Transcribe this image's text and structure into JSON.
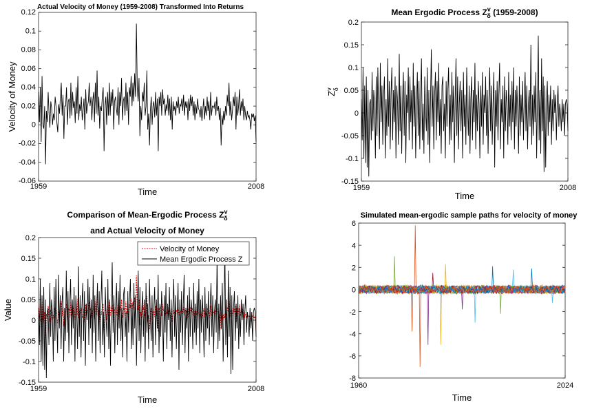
{
  "chart_data": [
    {
      "type": "line",
      "title": "Actual Velocity of Money (1959-2008) Transformed Into Returns",
      "xlabel": "Time",
      "ylabel": "Velocity of Money",
      "ylim": [
        -0.06,
        0.12
      ],
      "yticks": [
        "-0.06",
        "-0.04",
        "-0.02",
        "0",
        "0.02",
        "0.04",
        "0.06",
        "0.08",
        "0.1",
        "0.12"
      ],
      "xticks": [
        "1959",
        "2008"
      ],
      "x_start": 1959,
      "x_end": 2008,
      "grid": false,
      "legend": "none",
      "series": [
        {
          "color": "#000000",
          "values": [
            0.035,
            0.003,
            0.04,
            -0.018,
            0.052,
            0.0,
            -0.004,
            0.02,
            -0.042,
            0.015,
            0.003,
            0.035,
            0.012,
            -0.003,
            0.025,
            0.018,
            0.0,
            0.012,
            0.005,
            0.03,
            0.02,
            0.002,
            -0.008,
            0.022,
            0.012,
            0.03,
            0.045,
            0.01,
            0.032,
            -0.015,
            0.02,
            0.02,
            0.04,
            0.0,
            0.025,
            0.028,
            0.007,
            0.045,
            0.01,
            0.035,
            0.018,
            0.025,
            0.002,
            0.04,
            0.012,
            0.052,
            0.005,
            0.022,
            0.015,
            0.03,
            0.005,
            0.015,
            0.028,
            -0.005,
            0.038,
            0.012,
            0.02,
            0.025,
            0.045,
            0.02,
            0.03,
            0.005,
            0.025,
            0.035,
            0.003,
            0.045,
            0.012,
            0.058,
            0.01,
            0.03,
            -0.004,
            0.02,
            0.015,
            0.03,
            0.04,
            -0.028,
            0.02,
            0.03,
            0.0,
            0.035,
            0.01,
            0.045,
            0.01,
            0.035,
            0.02,
            0.038,
            -0.005,
            0.025,
            0.03,
            0.018,
            0.01,
            0.04,
            0.0,
            0.035,
            0.02,
            0.05,
            0.005,
            0.025,
            0.03,
            0.01,
            0.045,
            0.015,
            0.035,
            0.0,
            0.04,
            0.03,
            0.052,
            0.02,
            0.045,
            0.025,
            0.055,
            0.03,
            0.108,
            0.04,
            0.025,
            0.05,
            -0.012,
            0.02,
            0.005,
            0.035,
            0.025,
            0.045,
            0.01,
            0.02,
            0.058,
            -0.005,
            0.012,
            -0.022,
            0.015,
            0.03,
            0.0,
            0.02,
            0.025,
            0.008,
            0.035,
            0.01,
            0.028,
            -0.028,
            0.03,
            0.02,
            0.035,
            0.01,
            0.038,
            0.022,
            0.028,
            0.01,
            0.022,
            0.015,
            0.032,
            0.01,
            0.028,
            0.005,
            0.03,
            -0.005,
            0.025,
            0.015,
            0.02,
            0.01,
            0.025,
            0.018,
            0.03,
            0.012,
            0.022,
            0.02,
            0.028,
            0.015,
            0.032,
            0.01,
            0.025,
            0.018,
            0.025,
            0.005,
            0.028,
            0.015,
            0.032,
            0.02,
            0.03,
            0.01,
            0.025,
            0.005,
            0.022,
            0.012,
            0.028,
            0.018,
            0.015,
            0.008,
            0.02,
            0.004,
            0.015,
            0.028,
            0.006,
            0.02,
            0.01,
            0.03,
            0.015,
            0.025,
            0.005,
            0.035,
            0.01,
            0.02,
            0.02,
            0.018,
            0.025,
            0.01,
            0.03,
            0.015,
            0.02,
            0.005,
            0.018,
            -0.022,
            0.01,
            0.0,
            0.015,
            0.005,
            0.02,
            0.01,
            0.032,
            0.02,
            0.045,
            0.01,
            0.025,
            0.005,
            0.015,
            0.03,
            0.02,
            0.035,
            -0.005,
            0.03,
            0.01,
            0.02,
            0.038,
            0.01,
            0.025,
            0.015,
            0.028,
            0.005,
            0.02,
            0.01,
            0.005,
            0.015,
            0.008,
            0.01,
            0.005,
            -0.005,
            0.012,
            0.008,
            0.012,
            0.004,
            0.01,
            -0.018
          ]
        }
      ]
    },
    {
      "type": "line",
      "title": "Mean Ergodic Process Z",
      "title_sup": "v",
      "title_sub": "δ",
      "title_after": " (1959-2008)",
      "xlabel": "Time",
      "ylabel": "Z",
      "ylabel_sup": "v",
      "ylabel_sub": "δ",
      "ylim": [
        -0.15,
        0.2
      ],
      "yticks": [
        "-0.15",
        "-0.1",
        "-0.05",
        "0",
        "0.05",
        "0.1",
        "0.15",
        "0.2"
      ],
      "xticks": [
        "1959",
        "2008"
      ],
      "x_start": 1959,
      "x_end": 2008,
      "grid": false,
      "legend": "none",
      "series": [
        {
          "color": "#000000",
          "values": [
            0.03,
            -0.06,
            0.1,
            -0.1,
            0.06,
            -0.11,
            0.08,
            -0.12,
            0.05,
            -0.14,
            0.02,
            0.03,
            -0.06,
            0.09,
            -0.04,
            0.05,
            0.02,
            -0.1,
            0.08,
            -0.05,
            0.1,
            0.0,
            -0.08,
            0.11,
            -0.02,
            0.06,
            -0.07,
            0.04,
            0.08,
            -0.1,
            0.03,
            -0.05,
            0.12,
            -0.03,
            0.07,
            -0.08,
            0.04,
            0.1,
            -0.06,
            0.05,
            -0.02,
            0.08,
            -0.1,
            0.06,
            0.02,
            -0.07,
            0.13,
            -0.04,
            0.06,
            -0.09,
            0.03,
            0.09,
            -0.05,
            0.07,
            -0.11,
            0.04,
            0.0,
            0.1,
            -0.06,
            0.08,
            -0.02,
            0.05,
            -0.08,
            0.11,
            -0.03,
            0.06,
            -0.1,
            0.02,
            0.09,
            -0.05,
            0.07,
            -0.08,
            0.04,
            0.12,
            -0.06,
            0.02,
            -0.09,
            0.08,
            0.0,
            -0.04,
            0.1,
            -0.07,
            0.05,
            -0.11,
            0.03,
            0.14,
            -0.03,
            0.06,
            -0.08,
            0.04,
            0.09,
            -0.06,
            0.07,
            -0.02,
            0.11,
            -0.05,
            0.03,
            -0.09,
            0.06,
            0.08,
            -0.04,
            0.02,
            -0.1,
            0.07,
            -0.03,
            0.05,
            0.1,
            -0.07,
            0.04,
            -0.06,
            0.09,
            -0.02,
            0.06,
            -0.11,
            0.03,
            0.12,
            -0.05,
            0.08,
            -0.08,
            0.02,
            0.07,
            -0.04,
            0.05,
            -0.1,
            0.09,
            -0.03,
            0.04,
            -0.07,
            0.1,
            0.01,
            -0.05,
            0.06,
            -0.09,
            0.03,
            0.08,
            -0.06,
            0.05,
            -0.02,
            0.11,
            -0.08,
            0.04,
            -0.04,
            0.07,
            0.02,
            -0.1,
            0.06,
            -0.03,
            0.09,
            -0.07,
            0.04,
            0.0,
            0.08,
            -0.05,
            0.05,
            -0.09,
            0.03,
            0.1,
            -0.04,
            0.06,
            -0.07,
            0.02,
            0.09,
            -0.12,
            0.05,
            -0.03,
            0.07,
            -0.06,
            0.04,
            0.11,
            -0.08,
            0.03,
            -0.02,
            0.06,
            -0.1,
            0.08,
            -0.04,
            0.05,
            0.02,
            -0.07,
            0.09,
            -0.03,
            0.04,
            -0.06,
            0.07,
            -0.02,
            0.1,
            -0.08,
            0.05,
            -0.03,
            0.06,
            0.0,
            -0.09,
            0.08,
            -0.05,
            0.04,
            -0.02,
            0.07,
            -0.06,
            0.03,
            0.09,
            -0.04,
            0.06,
            -0.08,
            0.02,
            0.05,
            -0.03,
            0.15,
            -0.07,
            0.04,
            -0.05,
            0.06,
            -0.02,
            0.09,
            -0.1,
            0.03,
            0.17,
            -0.06,
            0.05,
            -0.09,
            0.12,
            -0.04,
            0.08,
            -0.13,
            0.06,
            -0.12,
            0.03,
            0.07,
            -0.05,
            0.04,
            -0.02,
            0.06,
            -0.07,
            0.03,
            -0.04,
            0.05,
            0.0,
            0.04,
            -0.06,
            0.02,
            0.06,
            -0.03,
            0.02,
            0.0,
            -0.04,
            0.03,
            -0.02,
            0.02,
            -0.05,
            0.02,
            0.03,
            0.02,
            -0.04
          ]
        }
      ]
    },
    {
      "type": "line",
      "title_line1": "Comparison of Mean-Ergodic Process Z",
      "title_sup": "v",
      "title_sub": "δ",
      "title_line2": "and Actual Velocity of Money",
      "xlabel": "Time",
      "ylabel": "Value",
      "ylim": [
        -0.15,
        0.2
      ],
      "yticks": [
        "-0.15",
        "-0.1",
        "-0.05",
        "0",
        "0.05",
        "0.1",
        "0.15",
        "0.2"
      ],
      "xticks": [
        "1959",
        "2008"
      ],
      "x_start": 1959,
      "x_end": 2008,
      "grid": false,
      "legend": "top-right",
      "series_refs": [
        {
          "name": "Velocity of Money",
          "color": "#ff0000",
          "dash": "2,1.5",
          "from_chart": 0
        },
        {
          "name": "Mean Ergodic Process Z",
          "color": "#000000",
          "dash": "",
          "from_chart": 1
        }
      ]
    },
    {
      "type": "line",
      "title": "Simulated mean-ergodic sample paths for velocity of money",
      "xlabel": "Time",
      "ylabel": "",
      "ylim": [
        -8,
        6
      ],
      "yticks": [
        "-8",
        "-6",
        "-4",
        "-2",
        "0",
        "2",
        "4",
        "6"
      ],
      "xticks": [
        "1960",
        "2024"
      ],
      "x_start": 1960,
      "x_end": 2024,
      "grid": false,
      "legend": "none",
      "n_paths": 30,
      "points_per_path": 260,
      "noise_amplitude": 0.35,
      "palette": [
        "#0072BD",
        "#D95319",
        "#EDB120",
        "#7E2F8E",
        "#77AC30",
        "#4DBEEE",
        "#A2142F"
      ],
      "spikes": [
        {
          "path": 1,
          "t": 1977.5,
          "value": 5.8
        },
        {
          "path": 1,
          "t": 1979.0,
          "value": -7.0
        },
        {
          "path": 1,
          "t": 1976.5,
          "value": -3.8
        },
        {
          "path": 3,
          "t": 1981.5,
          "value": -5.0
        },
        {
          "path": 4,
          "t": 1971.0,
          "value": 3.0
        },
        {
          "path": 2,
          "t": 1985.5,
          "value": -5.0
        },
        {
          "path": 2,
          "t": 1987.0,
          "value": 2.3
        },
        {
          "path": 5,
          "t": 1996.0,
          "value": -3.0
        },
        {
          "path": 0,
          "t": 2001.5,
          "value": 2.1
        },
        {
          "path": 5,
          "t": 2008.0,
          "value": 1.8
        },
        {
          "path": 0,
          "t": 2013.5,
          "value": 1.9
        },
        {
          "path": 5,
          "t": 2020.0,
          "value": -1.2
        },
        {
          "path": 6,
          "t": 1983.0,
          "value": 1.5
        },
        {
          "path": 3,
          "t": 1992.0,
          "value": -1.8
        },
        {
          "path": 4,
          "t": 2004.0,
          "value": -2.2
        }
      ]
    }
  ]
}
